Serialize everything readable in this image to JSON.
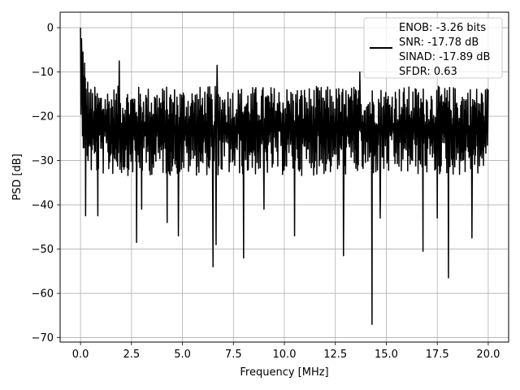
{
  "chart_data": {
    "type": "line",
    "xlabel": "Frequency [MHz]",
    "ylabel": "PSD [dB]",
    "xlim": [
      -1.0,
      21.0
    ],
    "ylim": [
      -71,
      3.5
    ],
    "x_ticks": [
      0.0,
      2.5,
      5.0,
      7.5,
      10.0,
      12.5,
      15.0,
      17.5,
      20.0
    ],
    "x_tick_labels": [
      "0.0",
      "2.5",
      "5.0",
      "7.5",
      "10.0",
      "12.5",
      "15.0",
      "17.5",
      "20.0"
    ],
    "y_ticks": [
      0,
      -10,
      -20,
      -30,
      -40,
      -50,
      -60,
      -70
    ],
    "y_tick_labels": [
      "0",
      "−10",
      "−20",
      "−30",
      "−40",
      "−50",
      "−60",
      "−70"
    ],
    "grid": true,
    "legend_position": "top-right",
    "series": [
      {
        "name": "ENOB: -3.26 bits\nSNR: -17.78 dB\nSINAD: -17.89 dB\nSFDR: 0.63",
        "color": "#000000",
        "x_range": [
          0.0,
          20.0
        ],
        "points": 1024,
        "baseline_db": -22,
        "spread_db": 12,
        "notable_points": [
          {
            "x": 0.0,
            "y": 0.0
          },
          {
            "x": 0.05,
            "y": -2.5
          },
          {
            "x": 0.12,
            "y": -5.5
          },
          {
            "x": 0.2,
            "y": -8.0
          },
          {
            "x": 0.25,
            "y": -42.5
          },
          {
            "x": 0.85,
            "y": -42.5
          },
          {
            "x": 1.9,
            "y": -7.5
          },
          {
            "x": 2.75,
            "y": -48.5
          },
          {
            "x": 3.0,
            "y": -41.0
          },
          {
            "x": 4.25,
            "y": -44.0
          },
          {
            "x": 4.8,
            "y": -47.0
          },
          {
            "x": 6.5,
            "y": -54.0
          },
          {
            "x": 6.65,
            "y": -49.0
          },
          {
            "x": 6.7,
            "y": -8.5
          },
          {
            "x": 8.0,
            "y": -52.0
          },
          {
            "x": 9.0,
            "y": -41.0
          },
          {
            "x": 10.5,
            "y": -47.0
          },
          {
            "x": 12.9,
            "y": -51.5
          },
          {
            "x": 13.7,
            "y": -10.0
          },
          {
            "x": 14.3,
            "y": -67.0
          },
          {
            "x": 14.7,
            "y": -43.0
          },
          {
            "x": 16.8,
            "y": -50.5
          },
          {
            "x": 17.5,
            "y": -43.0
          },
          {
            "x": 18.05,
            "y": -56.5
          },
          {
            "x": 19.2,
            "y": -47.5
          },
          {
            "x": 20.0,
            "y": -14.0
          }
        ]
      }
    ]
  }
}
